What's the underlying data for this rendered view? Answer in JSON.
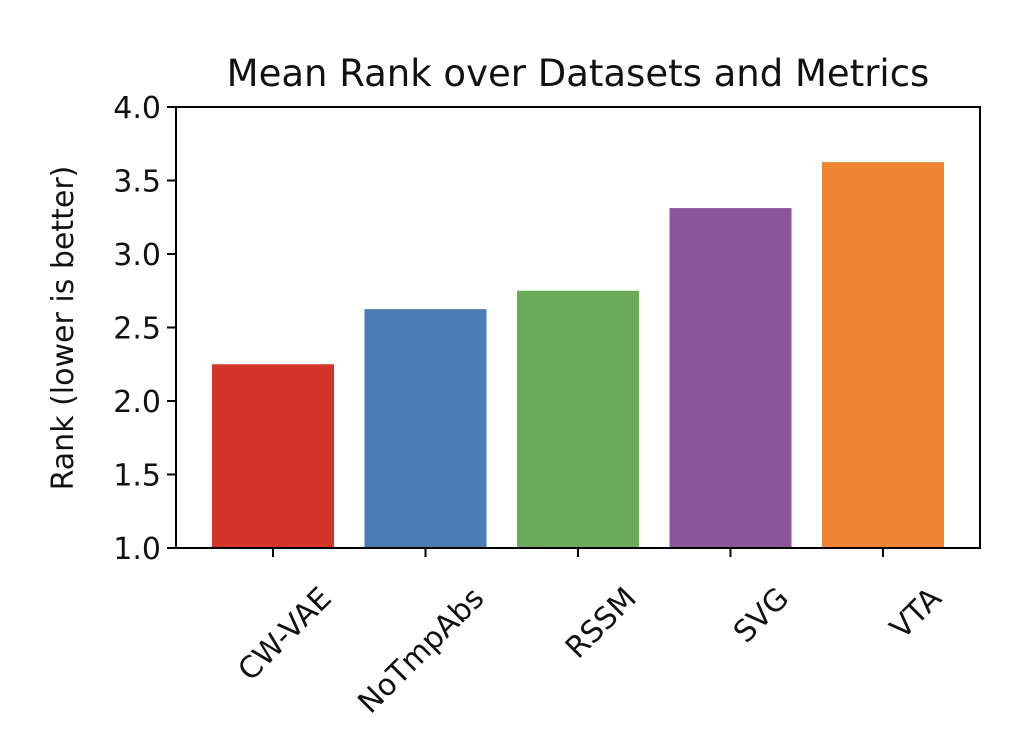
{
  "chart_data": {
    "type": "bar",
    "title": "Mean Rank over Datasets and Metrics",
    "xlabel": "",
    "ylabel": "Rank (lower is better)",
    "ylim": [
      1.0,
      4.0
    ],
    "yticks": [
      "1.0",
      "1.5",
      "2.0",
      "2.5",
      "3.0",
      "3.5",
      "4.0"
    ],
    "categories": [
      "CW-VAE",
      "NoTmpAbs",
      "RSSM",
      "SVG",
      "VTA"
    ],
    "values": [
      2.25,
      2.625,
      2.75,
      3.3125,
      3.625
    ],
    "colors": [
      "#d3352b",
      "#4a7db2",
      "#69ab59",
      "#8b559c",
      "#ee8434"
    ],
    "x_tick_rotation": -45,
    "grid": false,
    "legend": "none"
  }
}
